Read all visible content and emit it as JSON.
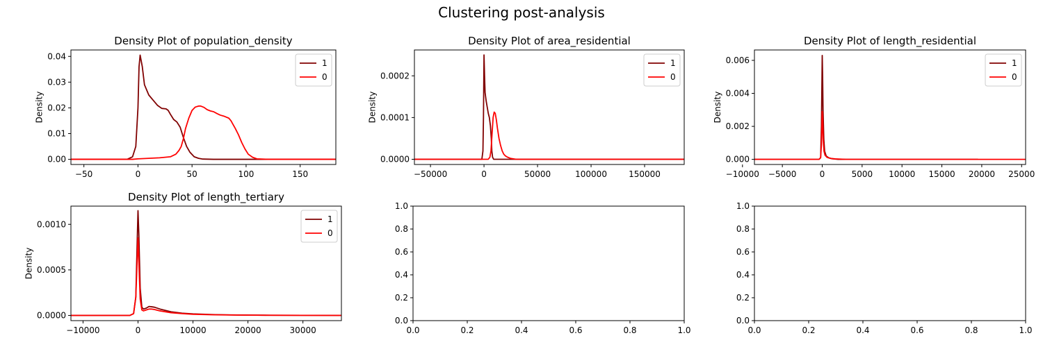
{
  "figure": {
    "title": "Clustering post-analysis"
  },
  "chart_data": [
    {
      "type": "line",
      "title": "Density Plot of population_density",
      "ylabel": "Density",
      "xlim": [
        -62,
        183
      ],
      "ylim": [
        -0.002,
        0.0425
      ],
      "xticks": [
        -50,
        0,
        50,
        100,
        150
      ],
      "xtick_labels": [
        "−50",
        "0",
        "50",
        "100",
        "150"
      ],
      "yticks": [
        0,
        0.01,
        0.02,
        0.03,
        0.04
      ],
      "ytick_labels": [
        "0.00",
        "0.01",
        "0.02",
        "0.03",
        "0.04"
      ],
      "legend": {
        "placement": "upper-right",
        "entries": [
          "1",
          "0"
        ]
      },
      "series": [
        {
          "name": "1",
          "color": "#800000",
          "x": [
            -62,
            -10,
            -5,
            -2,
            0,
            1,
            2,
            4,
            6,
            8,
            10,
            14,
            18,
            22,
            26,
            28,
            30,
            33,
            36,
            39,
            42,
            45,
            48,
            52,
            56,
            60,
            70,
            80,
            183
          ],
          "y": [
            0,
            0,
            0.001,
            0.005,
            0.02,
            0.036,
            0.0405,
            0.036,
            0.029,
            0.027,
            0.025,
            0.023,
            0.021,
            0.0198,
            0.0196,
            0.019,
            0.0175,
            0.0155,
            0.0145,
            0.0125,
            0.0085,
            0.005,
            0.0028,
            0.001,
            0.0004,
            0.0001,
            0,
            0,
            0
          ]
        },
        {
          "name": "0",
          "color": "#ff0000",
          "x": [
            -62,
            -5,
            0,
            10,
            20,
            30,
            35,
            38,
            40,
            42,
            44,
            47,
            50,
            53,
            56,
            58,
            61,
            64,
            67,
            70,
            73,
            76,
            80,
            84,
            86,
            88,
            90,
            93,
            96,
            99,
            102,
            106,
            110,
            120,
            183
          ],
          "y": [
            0,
            0,
            0.0002,
            0.0004,
            0.0006,
            0.001,
            0.002,
            0.0035,
            0.005,
            0.008,
            0.012,
            0.016,
            0.019,
            0.0203,
            0.0207,
            0.0207,
            0.0202,
            0.0193,
            0.0188,
            0.0185,
            0.0178,
            0.0172,
            0.0167,
            0.016,
            0.015,
            0.0135,
            0.012,
            0.0095,
            0.0065,
            0.004,
            0.002,
            0.0008,
            0.0002,
            0,
            0
          ]
        }
      ]
    },
    {
      "type": "line",
      "title": "Density Plot of area_residential",
      "ylabel": "Density",
      "xlim": [
        -65000,
        187000
      ],
      "ylim": [
        -1.25e-05,
        0.000262
      ],
      "xticks": [
        -50000,
        0,
        50000,
        100000,
        150000
      ],
      "xtick_labels": [
        "−50000",
        "0",
        "50000",
        "100000",
        "150000"
      ],
      "yticks": [
        0,
        0.0001,
        0.0002
      ],
      "ytick_labels": [
        "0.0000",
        "0.0001",
        "0.0002"
      ],
      "legend": {
        "placement": "upper-right",
        "entries": [
          "1",
          "0"
        ]
      },
      "series": [
        {
          "name": "1",
          "color": "#800000",
          "x": [
            -65000,
            -2000,
            -1000,
            -500,
            0,
            500,
            1000,
            2000,
            3000,
            4000,
            5000,
            6000,
            6800,
            7300,
            8000,
            9000,
            10000,
            187000
          ],
          "y": [
            0,
            0,
            2e-05,
            0.0001,
            0.00025,
            0.0002,
            0.00016,
            0.00014,
            0.000125,
            0.00011,
            0.0001,
            8e-05,
            5e-05,
            2e-05,
            5e-06,
            0,
            0,
            0
          ]
        },
        {
          "name": "0",
          "color": "#ff0000",
          "x": [
            -65000,
            0,
            4000,
            5500,
            6500,
            7500,
            8500,
            9500,
            10500,
            11500,
            12500,
            14000,
            15500,
            17000,
            18500,
            20000,
            22000,
            25000,
            30000,
            187000
          ],
          "y": [
            0,
            0,
            0,
            5e-06,
            2e-05,
            6e-05,
            0.0001,
            0.000113,
            0.00011,
            9.5e-05,
            7.5e-05,
            5e-05,
            3.3e-05,
            2e-05,
            1.2e-05,
            8e-06,
            5e-06,
            2e-06,
            0,
            0
          ]
        }
      ]
    },
    {
      "type": "line",
      "title": "Density Plot of length_residential",
      "ylabel": "Density",
      "xlim": [
        -8500,
        25500
      ],
      "ylim": [
        -0.00031,
        0.00663
      ],
      "xticks": [
        -10000,
        -5000,
        0,
        5000,
        10000,
        15000,
        20000,
        25000
      ],
      "xtick_labels": [
        "−10000",
        "−5000",
        "0",
        "5000",
        "10000",
        "15000",
        "20000",
        "25000"
      ],
      "yticks": [
        0,
        0.002,
        0.004,
        0.006
      ],
      "ytick_labels": [
        "0.000",
        "0.002",
        "0.004",
        "0.006"
      ],
      "legend": {
        "placement": "upper-right",
        "entries": [
          "1",
          "0"
        ]
      },
      "series": [
        {
          "name": "1",
          "color": "#800000",
          "x": [
            -8500,
            -400,
            -200,
            -100,
            0,
            50,
            100,
            200,
            300,
            500,
            800,
            1200,
            2000,
            19500
          ],
          "y": [
            0,
            0,
            0.0001,
            0.002,
            0.0063,
            0.005,
            0.003,
            0.0012,
            0.0005,
            0.0002,
            0.0001,
            4e-05,
            0,
            0
          ]
        },
        {
          "name": "0",
          "color": "#ff0000",
          "x": [
            -8500,
            -400,
            -200,
            -100,
            0,
            60,
            120,
            220,
            350,
            600,
            1000,
            1600,
            3000,
            25500
          ],
          "y": [
            0,
            0,
            0.0001,
            0.0009,
            0.0029,
            0.0022,
            0.0012,
            0.0005,
            0.00025,
            0.00012,
            6e-05,
            3e-05,
            0,
            0
          ]
        }
      ]
    },
    {
      "type": "line",
      "title": "Density Plot of length_tertiary",
      "ylabel": "Density",
      "xlim": [
        -12200,
        37000
      ],
      "ylim": [
        -5.7e-05,
        0.0012
      ],
      "xticks": [
        -10000,
        0,
        10000,
        20000,
        30000
      ],
      "xtick_labels": [
        "−10000",
        "0",
        "10000",
        "20000",
        "30000"
      ],
      "yticks": [
        0,
        0.0005,
        0.001
      ],
      "ytick_labels": [
        "0.0000",
        "0.0005",
        "0.0010"
      ],
      "legend": {
        "placement": "upper-right",
        "entries": [
          "1",
          "0"
        ]
      },
      "series": [
        {
          "name": "1",
          "color": "#800000",
          "x": [
            -12200,
            -1500,
            -800,
            -400,
            -150,
            0,
            150,
            400,
            700,
            1000,
            1500,
            2000,
            2500,
            3000,
            4000,
            6000,
            8000,
            10000,
            14000,
            18000,
            24000,
            30000,
            37000
          ],
          "y": [
            0,
            0,
            2e-05,
            0.0002,
            0.0008,
            0.00115,
            0.0009,
            0.0003,
            9e-05,
            7e-05,
            8e-05,
            9.8e-05,
            9.5e-05,
            9e-05,
            7e-05,
            4e-05,
            2.5e-05,
            1.7e-05,
            9e-06,
            5e-06,
            2e-06,
            1e-06,
            0
          ]
        },
        {
          "name": "0",
          "color": "#ff0000",
          "x": [
            -12200,
            -1500,
            -800,
            -400,
            -150,
            0,
            150,
            400,
            700,
            1000,
            1500,
            2000,
            2500,
            3000,
            4000,
            6000,
            8000,
            10000,
            14000,
            18000,
            24000,
            30000,
            37000
          ],
          "y": [
            0,
            0,
            2e-05,
            0.0002,
            0.0006,
            0.00085,
            0.0006,
            0.00018,
            6e-05,
            5e-05,
            6e-05,
            7e-05,
            7e-05,
            6.5e-05,
            5e-05,
            3e-05,
            2e-05,
            1.3e-05,
            7e-06,
            4e-06,
            2e-06,
            1e-06,
            0
          ]
        }
      ]
    },
    {
      "type": "line",
      "title": "",
      "ylabel": "",
      "xlim": [
        0,
        1
      ],
      "ylim": [
        0,
        1
      ],
      "xticks": [
        0,
        0.2,
        0.4,
        0.6,
        0.8,
        1.0
      ],
      "xtick_labels": [
        "0.0",
        "0.2",
        "0.4",
        "0.6",
        "0.8",
        "1.0"
      ],
      "yticks": [
        0,
        0.2,
        0.4,
        0.6,
        0.8,
        1.0
      ],
      "ytick_labels": [
        "0.0",
        "0.2",
        "0.4",
        "0.6",
        "0.8",
        "1.0"
      ],
      "series": []
    },
    {
      "type": "line",
      "title": "",
      "ylabel": "",
      "xlim": [
        0,
        1
      ],
      "ylim": [
        0,
        1
      ],
      "xticks": [
        0,
        0.2,
        0.4,
        0.6,
        0.8,
        1.0
      ],
      "xtick_labels": [
        "0.0",
        "0.2",
        "0.4",
        "0.6",
        "0.8",
        "1.0"
      ],
      "yticks": [
        0,
        0.2,
        0.4,
        0.6,
        0.8,
        1.0
      ],
      "ytick_labels": [
        "0.0",
        "0.2",
        "0.4",
        "0.6",
        "0.8",
        "1.0"
      ],
      "series": []
    }
  ]
}
